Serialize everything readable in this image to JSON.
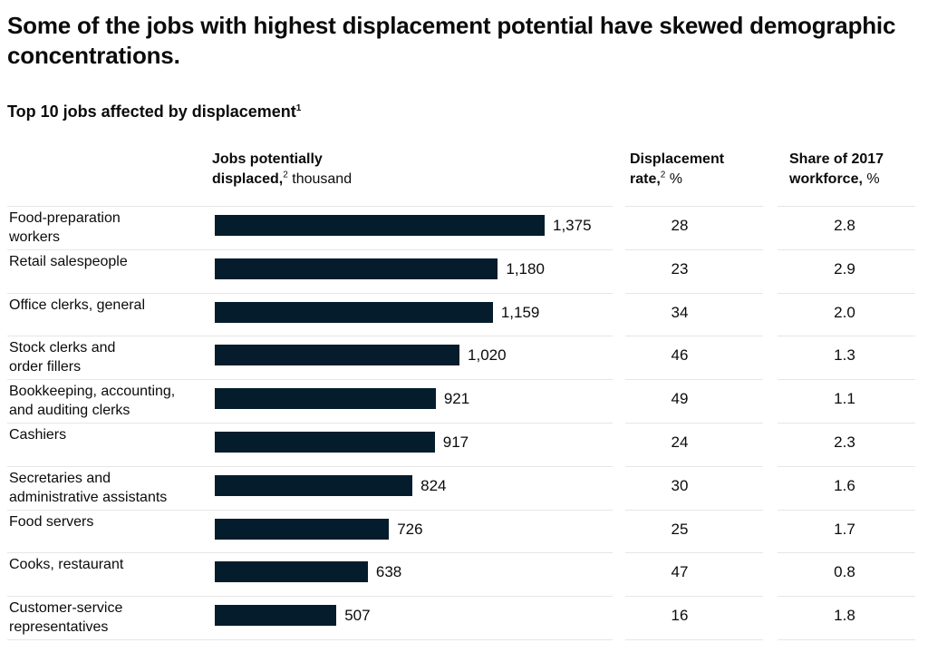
{
  "headline": "Some of the jobs with highest displacement potential have skewed demographic concentrations.",
  "subtitle": "Top 10 jobs affected by displacement",
  "subtitle_footnote": "1",
  "columns": {
    "jobs": {
      "bold_1": "Jobs potentially",
      "bold_2": "displaced,",
      "footnote": "2",
      "unit": " thousand"
    },
    "rate": {
      "bold_1": "Displacement",
      "bold_2": "rate,",
      "footnote": "2",
      "unit": " %"
    },
    "share": {
      "bold_1": "Share of 2017",
      "bold_2": "workforce,",
      "unit": " %"
    }
  },
  "colors": {
    "bar": "#051c2c",
    "rule": "#e6e6e6"
  },
  "chart_data": {
    "type": "bar",
    "orientation": "horizontal",
    "categories": [
      "Food-preparation\nworkers",
      "Retail salespeople",
      "Office clerks, general",
      "Stock clerks and\norder fillers",
      "Bookkeeping, accounting,\nand auditing clerks",
      "Cashiers",
      "Secretaries and\nadministrative assistants",
      "Food servers",
      "Cooks, restaurant",
      "Customer-service\nrepresentatives"
    ],
    "values": [
      1375,
      1180,
      1159,
      1020,
      921,
      917,
      824,
      726,
      638,
      507
    ],
    "value_labels": [
      "1,375",
      "1,180",
      "1,159",
      "1,020",
      "921",
      "917",
      "824",
      "726",
      "638",
      "507"
    ],
    "displacement_rate": [
      "28",
      "23",
      "34",
      "46",
      "49",
      "24",
      "30",
      "25",
      "47",
      "16"
    ],
    "workforce_share": [
      "2.8",
      "2.9",
      "2.0",
      "1.3",
      "1.1",
      "2.3",
      "1.6",
      "1.7",
      "0.8",
      "1.8"
    ],
    "xlim": [
      0,
      1375
    ],
    "grid": false
  }
}
